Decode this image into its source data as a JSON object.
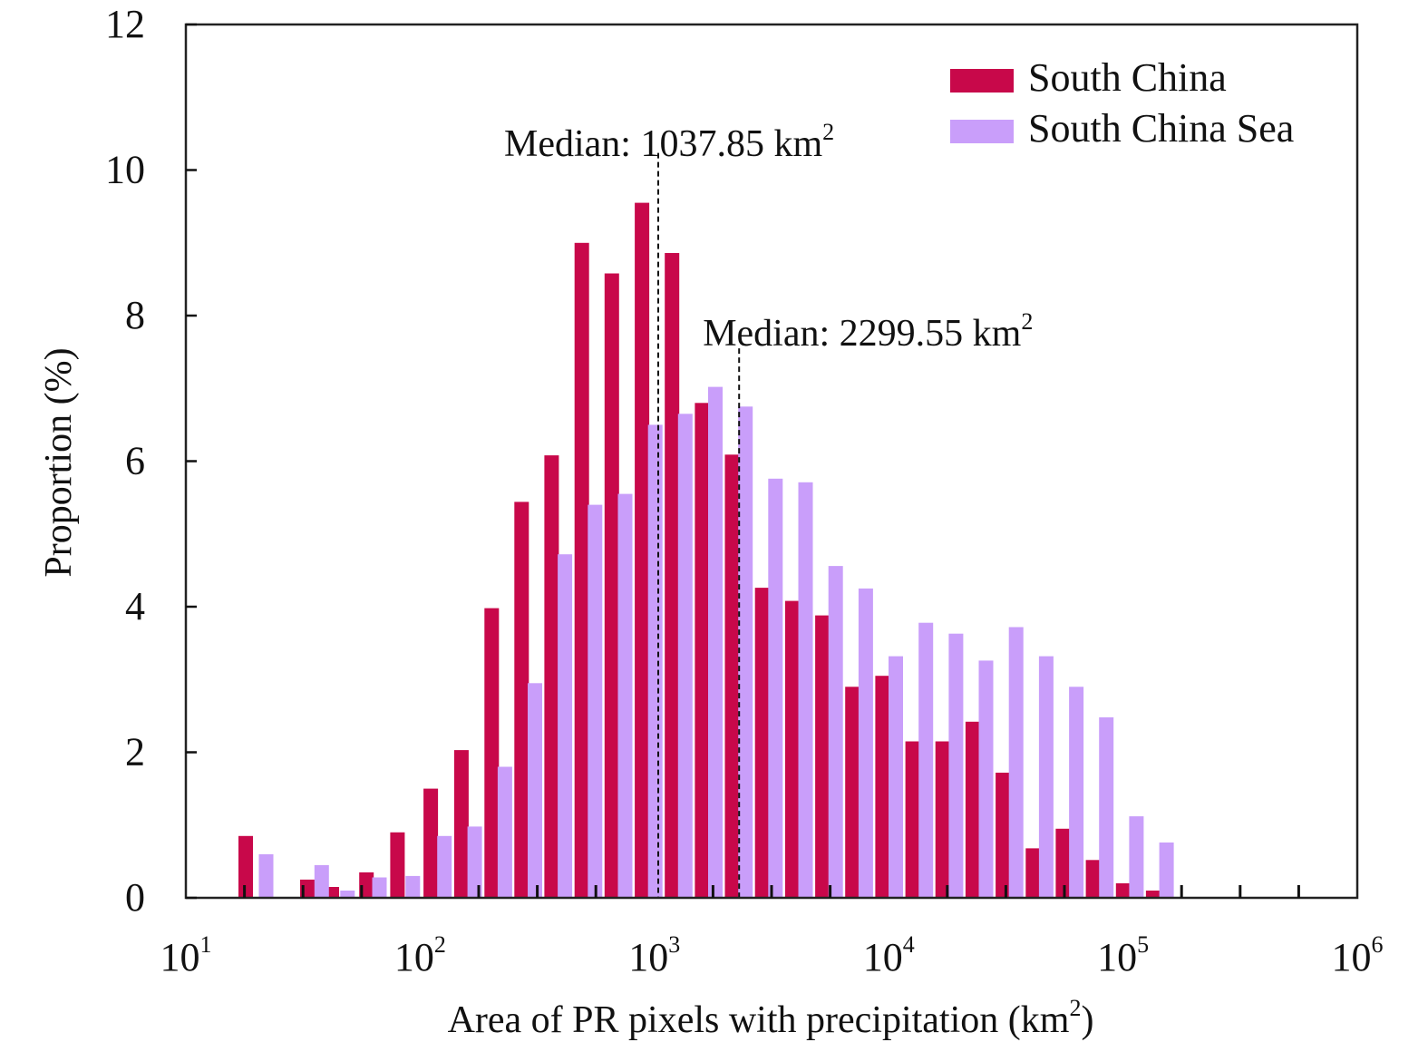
{
  "chart_data": {
    "type": "bar",
    "xlabel_main": "Area of PR pixels with precipitation (km",
    "xlabel_sup": "2",
    "xlabel_end": ")",
    "ylabel": "Proportion (%)",
    "x_scale": "log",
    "xlim": [
      10,
      1000000
    ],
    "ylim": [
      0,
      12
    ],
    "x_ticks": [
      {
        "value": 10,
        "base": "10",
        "exp": "1"
      },
      {
        "value": 100,
        "base": "10",
        "exp": "2"
      },
      {
        "value": 1000,
        "base": "10",
        "exp": "3"
      },
      {
        "value": 10000,
        "base": "10",
        "exp": "4"
      },
      {
        "value": 100000,
        "base": "10",
        "exp": "5"
      },
      {
        "value": 1000000,
        "base": "10",
        "exp": "6"
      }
    ],
    "y_ticks": [
      "0",
      "2",
      "4",
      "6",
      "8",
      "10",
      "12"
    ],
    "grid": false,
    "legend_position": "top-right",
    "series": [
      {
        "name": "South China",
        "color": "#c8084a",
        "x": [
          18,
          33,
          42,
          59,
          80,
          111,
          150,
          202,
          271,
          364,
          490,
          658,
          885,
          1189,
          1598,
          2147,
          2886,
          3878,
          5211,
          7003,
          9412,
          12649,
          17000,
          22846,
          30703,
          41262,
          55452,
          74523,
          100152,
          134595
        ],
        "values": [
          0.85,
          0.25,
          0.15,
          0.35,
          0.9,
          1.5,
          2.03,
          3.98,
          5.44,
          6.08,
          9.0,
          8.58,
          9.55,
          8.86,
          6.8,
          6.09,
          4.26,
          4.08,
          3.88,
          2.9,
          3.05,
          2.15,
          2.15,
          2.42,
          1.72,
          0.68,
          0.95,
          0.52,
          0.2,
          0.1
        ]
      },
      {
        "name": "South China Sea",
        "color": "#c99efa",
        "x": [
          22,
          38,
          49,
          67,
          93,
          127,
          171,
          230,
          309,
          415,
          558,
          750,
          1008,
          1354,
          1820,
          2446,
          3287,
          4418,
          5937,
          7979,
          10723,
          14411,
          19367,
          26027,
          34977,
          47006,
          63171,
          84896,
          114091,
          153326
        ],
        "values": [
          0.6,
          0.45,
          0.1,
          0.28,
          0.3,
          0.85,
          0.98,
          1.8,
          2.95,
          4.72,
          5.4,
          5.55,
          6.5,
          6.65,
          7.02,
          6.75,
          5.76,
          5.71,
          4.56,
          4.25,
          3.32,
          3.78,
          3.63,
          3.26,
          3.72,
          3.32,
          2.9,
          2.48,
          1.12,
          0.76
        ]
      }
    ],
    "annotations": [
      {
        "label": "Median: 1037.85 km",
        "sup": "2",
        "x": 1037.85,
        "series": "South China"
      },
      {
        "label": "Median: 2299.55 km",
        "sup": "2",
        "x": 2299.55,
        "series": "South China Sea"
      }
    ]
  }
}
